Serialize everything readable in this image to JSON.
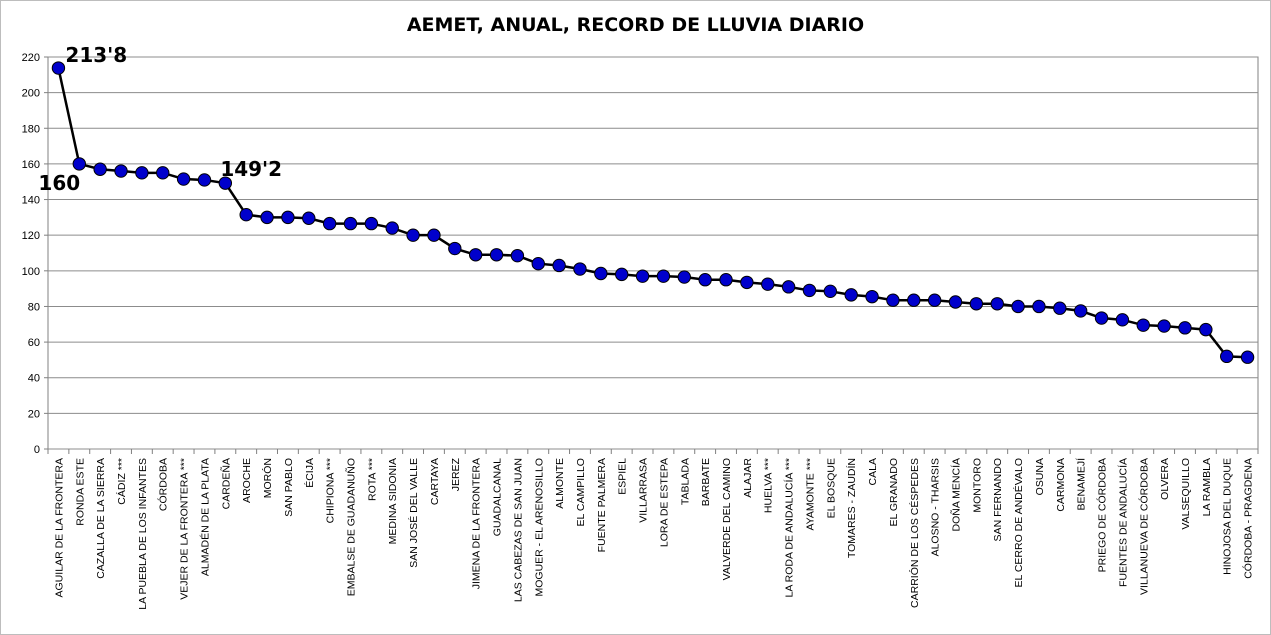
{
  "chart_data": {
    "type": "line",
    "title": "AEMET, ANUAL, RECORD DE LLUVIA DIARIO",
    "ylim": [
      0,
      220
    ],
    "yticks": [
      0,
      20,
      40,
      60,
      80,
      100,
      120,
      140,
      160,
      180,
      200,
      220
    ],
    "grid": true,
    "legend": "none",
    "categories": [
      "AGUILAR DE LA FRONTERA",
      "RONDA ESTE",
      "CAZALLA DE LA SIERRA",
      "CÁDIZ ***",
      "LA PUEBLA DE LOS INFANTES",
      "CÓRDOBA",
      "VEJER DE LA FRONTERA ***",
      "ALMADÉN DE LA PLATA",
      "CARDEÑA",
      "AROCHE",
      "MORÓN",
      "SAN PABLO",
      "ÉCIJA",
      "CHIPIONA ***",
      "EMBALSE DE GUADANUÑO",
      "ROTA ***",
      "MEDINA SIDONIA",
      "SAN JOSÉ DEL VALLE",
      "CARTAYA",
      "JEREZ",
      "JIMENA DE LA FRONTERA",
      "GUADALCANAL",
      "LAS CABEZAS DE SAN JUAN",
      "MOGUER - EL ARENOSILLO",
      "ALMONTE",
      "EL CAMPILLO",
      "FUENTE PALMERA",
      "ESPIEL",
      "VILLARRASA",
      "LORA DE ESTEPA",
      "TABLADA",
      "BARBATE",
      "VALVERDE DEL CAMINO",
      "ALAJAR",
      "HUELVA ***",
      "LA RODA DE ANDALUCÍA ***",
      "AYAMONTE ***",
      "EL BOSQUE",
      "TOMARES - ZAUDÍN",
      "CALA",
      "EL GRANADO",
      "CARRIÓN DE LOS CÉSPEDES",
      "ALOSNO - THARSIS",
      "DOÑA MENCÍA",
      "MONTORO",
      "SAN FERNANDO",
      "EL CERRO DE ANDÉVALO",
      "OSUNA",
      "CARMONA",
      "BENAMEJÍ",
      "PRIEGO DE CÓRDOBA",
      "FUENTES DE ANDALUCÍA",
      "VILLANUEVA DE CÓRDOBA",
      "OLVERA",
      "VALSEQUILLO",
      "LA RAMBLA",
      "HINOJOSA DEL DUQUE",
      "CÓRDOBA - PRAGDENA"
    ],
    "series": [
      {
        "color": "#0000cc",
        "line_color": "#000000",
        "values": [
          213.8,
          160,
          157,
          156,
          155,
          155,
          151.5,
          151,
          149.2,
          131.5,
          130,
          130,
          129.5,
          126.5,
          126.5,
          126.5,
          124,
          120,
          120,
          112.5,
          109,
          109,
          108.5,
          104,
          103,
          101,
          98.5,
          98,
          97,
          97,
          96.5,
          95,
          95,
          93.5,
          92.5,
          91,
          89,
          88.5,
          86.5,
          85.5,
          83.5,
          83.5,
          83.5,
          82.5,
          81.5,
          81.5,
          80,
          80,
          79,
          77.5,
          73.5,
          72.5,
          69.5,
          69,
          68,
          67,
          52,
          51.5
        ]
      }
    ],
    "annotations": [
      {
        "text": "213'8",
        "index": 0
      },
      {
        "text": "160",
        "index": 1
      },
      {
        "text": "149'2",
        "index": 8
      }
    ]
  }
}
